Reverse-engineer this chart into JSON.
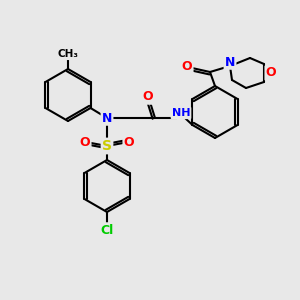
{
  "background_color": "#e8e8e8",
  "bond_color": "#000000",
  "atom_colors": {
    "N": "#0000ff",
    "O": "#ff0000",
    "S": "#cccc00",
    "Cl": "#00cc00",
    "H": "#808080",
    "C": "#000000"
  },
  "figsize": [
    3.0,
    3.0
  ],
  "dpi": 100
}
